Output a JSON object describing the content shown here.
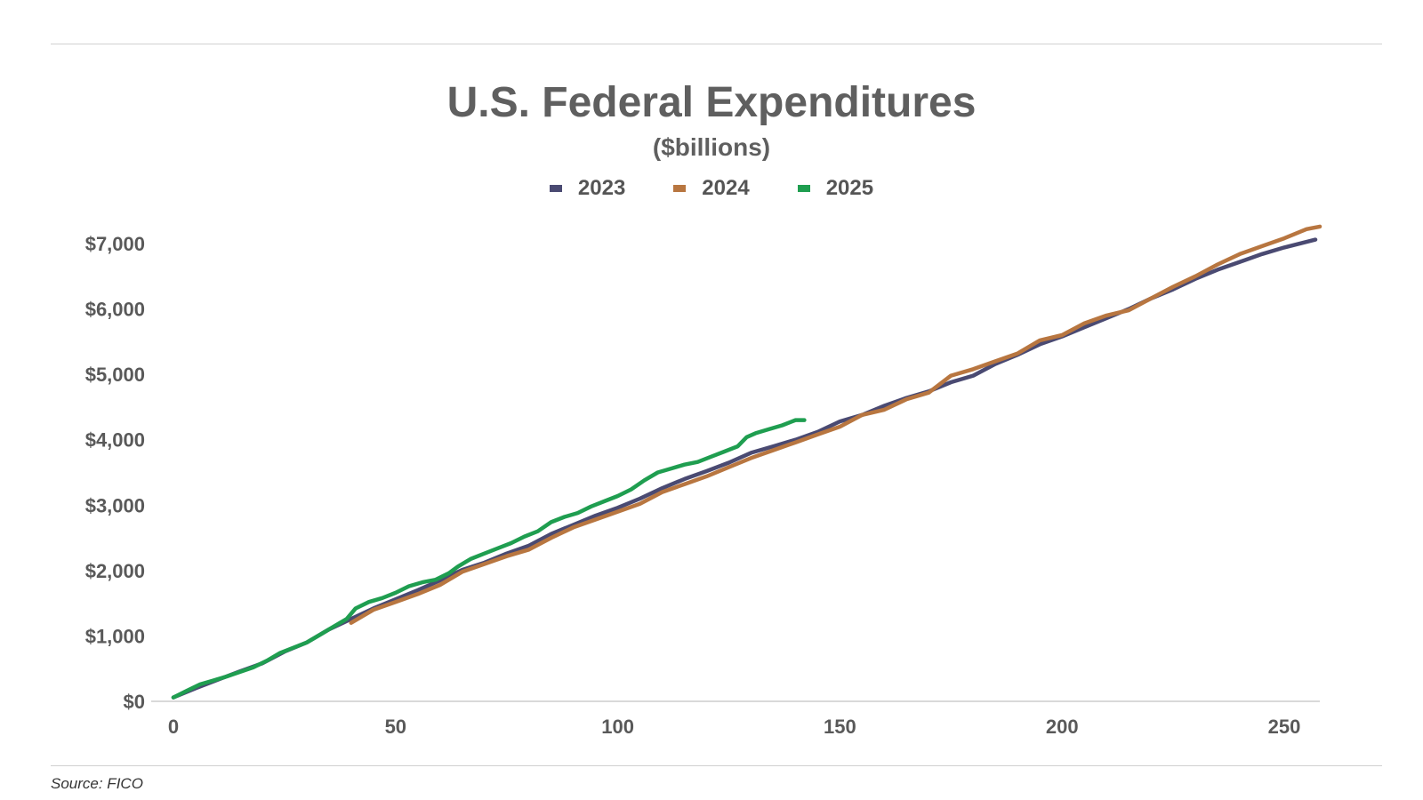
{
  "chart_data": {
    "type": "line",
    "title": "U.S. Federal Expenditures",
    "subtitle": "($billions)",
    "xlim": [
      0,
      258
    ],
    "ylim": [
      0,
      7000
    ],
    "x_ticks": [
      "0",
      "50",
      "100",
      "150",
      "200",
      "250"
    ],
    "y_ticks": [
      "$0",
      "$1,000",
      "$2,000",
      "$3,000",
      "$4,000",
      "$5,000",
      "$6,000",
      "$7,000"
    ],
    "grid": false,
    "legend_position": "top-center",
    "series": [
      {
        "name": "2023",
        "color": "#4a4a72",
        "x": [
          0,
          5,
          10,
          15,
          20,
          25,
          30,
          35,
          40,
          45,
          50,
          55,
          60,
          65,
          70,
          75,
          80,
          85,
          90,
          95,
          100,
          105,
          110,
          115,
          120,
          125,
          130,
          135,
          140,
          145,
          150,
          155,
          160,
          165,
          170,
          175,
          180,
          185,
          190,
          195,
          200,
          205,
          210,
          215,
          220,
          225,
          230,
          235,
          240,
          245,
          250,
          257
        ],
        "y": [
          60,
          200,
          330,
          460,
          580,
          760,
          900,
          1100,
          1260,
          1420,
          1560,
          1700,
          1850,
          2010,
          2120,
          2260,
          2380,
          2560,
          2700,
          2840,
          2960,
          3100,
          3260,
          3400,
          3520,
          3650,
          3800,
          3900,
          4000,
          4120,
          4280,
          4380,
          4520,
          4640,
          4740,
          4880,
          4980,
          5160,
          5300,
          5460,
          5580,
          5720,
          5860,
          6000,
          6160,
          6300,
          6460,
          6600,
          6720,
          6840,
          6940,
          7060
        ]
      },
      {
        "name": "2024",
        "color": "#b87640",
        "x": [
          40,
          45,
          50,
          55,
          60,
          65,
          70,
          75,
          80,
          85,
          90,
          95,
          100,
          105,
          110,
          115,
          120,
          125,
          130,
          135,
          140,
          145,
          150,
          155,
          160,
          165,
          170,
          175,
          180,
          185,
          190,
          195,
          200,
          205,
          210,
          215,
          220,
          225,
          230,
          235,
          240,
          245,
          250,
          255,
          258
        ],
        "y": [
          1200,
          1400,
          1520,
          1640,
          1780,
          1980,
          2100,
          2220,
          2320,
          2500,
          2660,
          2780,
          2900,
          3020,
          3200,
          3320,
          3440,
          3580,
          3720,
          3840,
          3960,
          4080,
          4200,
          4380,
          4460,
          4620,
          4720,
          4980,
          5080,
          5200,
          5320,
          5520,
          5600,
          5780,
          5900,
          5980,
          6160,
          6340,
          6500,
          6680,
          6840,
          6960,
          7080,
          7220,
          7260
        ]
      },
      {
        "name": "2025",
        "color": "#1f9e50",
        "x": [
          0,
          3,
          6,
          9,
          12,
          15,
          18,
          21,
          24,
          27,
          30,
          33,
          36,
          39,
          41,
          44,
          47,
          50,
          53,
          56,
          59,
          62,
          64,
          67,
          70,
          73,
          76,
          79,
          82,
          85,
          88,
          91,
          94,
          97,
          100,
          103,
          106,
          109,
          112,
          115,
          118,
          121,
          124,
          127,
          129,
          131,
          134,
          137,
          140,
          142
        ],
        "y": [
          60,
          160,
          260,
          320,
          380,
          450,
          520,
          620,
          740,
          820,
          900,
          1020,
          1140,
          1260,
          1420,
          1520,
          1580,
          1660,
          1760,
          1820,
          1860,
          1960,
          2060,
          2180,
          2260,
          2340,
          2420,
          2520,
          2600,
          2740,
          2820,
          2880,
          2980,
          3060,
          3140,
          3240,
          3380,
          3500,
          3560,
          3620,
          3660,
          3740,
          3820,
          3900,
          4040,
          4100,
          4160,
          4220,
          4300,
          4300
        ]
      }
    ]
  },
  "source": "Source: FICO"
}
